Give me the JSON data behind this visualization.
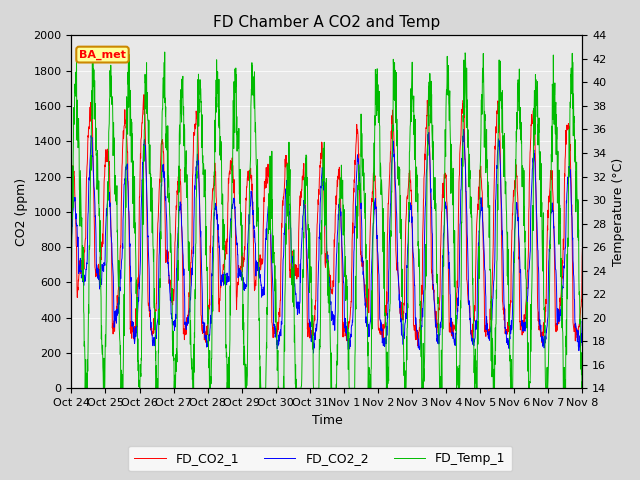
{
  "title": "FD Chamber A CO2 and Temp",
  "xlabel": "Time",
  "ylabel_left": "CO2 (ppm)",
  "ylabel_right": "Temperature (°C)",
  "ylim_left": [
    0,
    2000
  ],
  "ylim_right": [
    14,
    44
  ],
  "xtick_labels": [
    "Oct 24",
    "Oct 25",
    "Oct 26",
    "Oct 27",
    "Oct 28",
    "Oct 29",
    "Oct 30",
    "Oct 31",
    "Nov 1",
    "Nov 2",
    "Nov 3",
    "Nov 4",
    "Nov 5",
    "Nov 6",
    "Nov 7",
    "Nov 8"
  ],
  "legend_labels": [
    "FD_CO2_1",
    "FD_CO2_2",
    "FD_Temp_1"
  ],
  "colors": [
    "#ff0000",
    "#0000ff",
    "#00bb00"
  ],
  "annotation_text": "BA_met",
  "annotation_bg": "#ffff99",
  "annotation_border": "#cc8800",
  "background_color": "#d8d8d8",
  "plot_bg": "#e8e8e8",
  "n_points": 2000,
  "seed": 42
}
